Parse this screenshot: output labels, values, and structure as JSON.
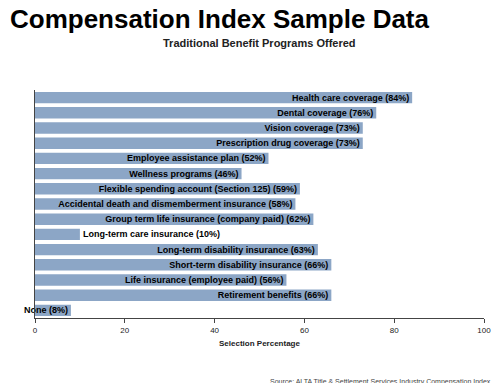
{
  "chart_data": {
    "type": "bar",
    "title": "Compensation Index Sample Data",
    "subtitle": "Traditional Benefit Programs Offered",
    "x_label": "Selection Percentage",
    "annotations": [
      "Source: ALTA Title & Settlement Services Industry Compensation Index"
    ],
    "orientation": "horizontal",
    "categories": [
      "Health care coverage (84%)",
      "Dental coverage (76%)",
      "Vision coverage (73%)",
      "Prescription drug coverage (73%)",
      "Employee assistance plan (52%)",
      "Wellness programs (46%)",
      "Flexible spending account (Section 125) (59%)",
      "Accidental death and dismemberment insurance (58%)",
      "Group term life insurance (company paid) (62%)",
      "Long-term care insurance (10%)",
      "Long-term disability insurance (63%)",
      "Short-term disability insurance (66%)",
      "Life insurance (employee paid) (56%)",
      "Retirement benefits (66%)",
      "None (8%)"
    ],
    "values": [
      84,
      76,
      73,
      73,
      52,
      46,
      59,
      58,
      62,
      10,
      63,
      66,
      56,
      66,
      8
    ],
    "color": "#8ca6c6",
    "xlim": [
      0,
      100
    ],
    "xticks": [
      0,
      20,
      40,
      60,
      80,
      100
    ],
    "grid": false,
    "tick_labels": "x"
  }
}
